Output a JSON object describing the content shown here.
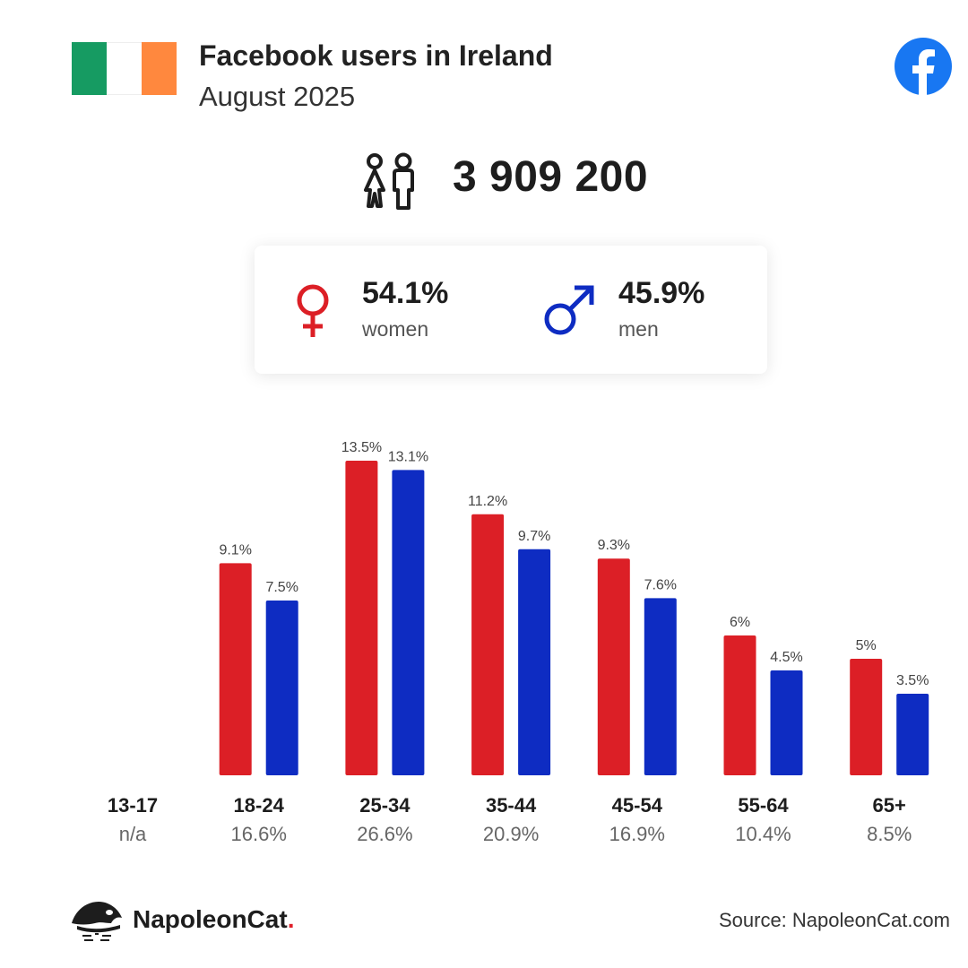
{
  "header": {
    "title": "Facebook users in Ireland",
    "subtitle": "August 2025"
  },
  "colors": {
    "women": "#dc1f26",
    "men": "#0e2cc2",
    "flag_green": "#169b62",
    "flag_orange": "#ff883e",
    "facebook_blue": "#1877f2"
  },
  "icons": [
    "ireland-flag-icon",
    "facebook-icon",
    "people-icon",
    "female-icon",
    "male-icon",
    "napoleoncat-logo-icon"
  ],
  "total": {
    "value": "3 909 200"
  },
  "gender": {
    "women_pct": "54.1%",
    "women_label": "women",
    "men_pct": "45.9%",
    "men_label": "men"
  },
  "chart_data": {
    "type": "bar",
    "categories": [
      "13-17",
      "18-24",
      "25-34",
      "35-44",
      "45-54",
      "55-64",
      "65+"
    ],
    "category_totals": [
      "n/a",
      "16.6%",
      "26.6%",
      "20.9%",
      "16.9%",
      "10.4%",
      "8.5%"
    ],
    "series": [
      {
        "name": "women",
        "values": [
          null,
          9.1,
          13.5,
          11.2,
          9.3,
          6,
          5
        ],
        "labels": [
          "",
          "9.1%",
          "13.5%",
          "11.2%",
          "9.3%",
          "6%",
          "5%"
        ]
      },
      {
        "name": "men",
        "values": [
          null,
          7.5,
          13.1,
          9.7,
          7.6,
          4.5,
          3.5
        ],
        "labels": [
          "",
          "7.5%",
          "13.1%",
          "9.7%",
          "7.6%",
          "4.5%",
          "3.5%"
        ]
      }
    ],
    "grid": false,
    "ylim": [
      0,
      13.5
    ]
  },
  "footer": {
    "brand_name": "NapoleonCat",
    "brand_dot": ".",
    "source": "Source: NapoleonCat.com"
  }
}
